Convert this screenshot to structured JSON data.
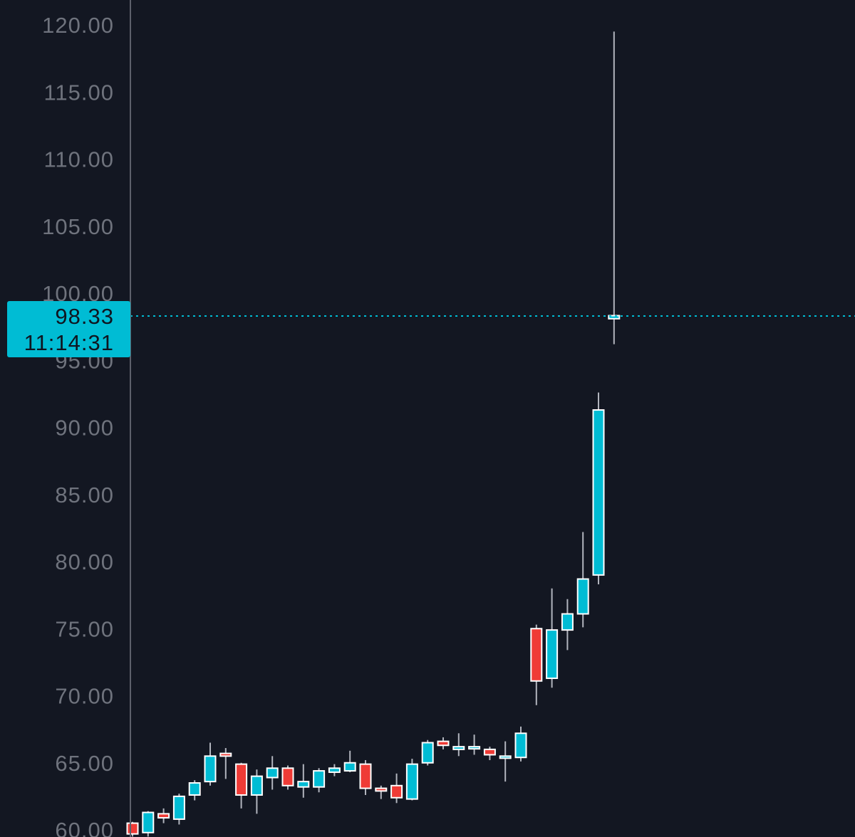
{
  "chart_data": {
    "type": "candlestick",
    "title": "",
    "xlabel": "",
    "ylabel": "",
    "ylim": [
      60,
      121.5
    ],
    "y_ticks": [
      "60.00",
      "65.00",
      "70.00",
      "75.00",
      "80.00",
      "85.00",
      "90.00",
      "95.00",
      "100.00",
      "105.00",
      "110.00",
      "115.00",
      "120.00"
    ],
    "grid": false,
    "legend": "none",
    "colors": {
      "background": "#131722",
      "up": "#00bcd4",
      "down": "#ef3b36",
      "outline": "#ffffff",
      "wick": "#b2b5be",
      "axis_line": "#5d606b",
      "tick_text": "#6f737d",
      "price_line": "#00bcd4"
    },
    "current_price": {
      "price": "98.33",
      "time": "11:14:31",
      "value": 98.33
    },
    "candles": [
      {
        "open": 60.5,
        "high": 60.6,
        "low": 59.5,
        "close": 59.7
      },
      {
        "open": 59.8,
        "high": 61.4,
        "low": 59.5,
        "close": 61.3
      },
      {
        "open": 61.2,
        "high": 61.6,
        "low": 60.5,
        "close": 60.9
      },
      {
        "open": 60.8,
        "high": 62.7,
        "low": 60.4,
        "close": 62.5
      },
      {
        "open": 62.6,
        "high": 63.7,
        "low": 62.2,
        "close": 63.5
      },
      {
        "open": 63.6,
        "high": 66.5,
        "low": 63.3,
        "close": 65.5
      },
      {
        "open": 65.7,
        "high": 66.1,
        "low": 63.8,
        "close": 65.5
      },
      {
        "open": 64.9,
        "high": 65.0,
        "low": 61.6,
        "close": 62.6
      },
      {
        "open": 62.6,
        "high": 64.5,
        "low": 61.2,
        "close": 64.0
      },
      {
        "open": 63.9,
        "high": 65.5,
        "low": 63.0,
        "close": 64.6
      },
      {
        "open": 64.6,
        "high": 64.8,
        "low": 63.0,
        "close": 63.3
      },
      {
        "open": 63.2,
        "high": 64.9,
        "low": 62.4,
        "close": 63.6
      },
      {
        "open": 63.2,
        "high": 64.6,
        "low": 62.8,
        "close": 64.4
      },
      {
        "open": 64.3,
        "high": 64.9,
        "low": 64.0,
        "close": 64.6
      },
      {
        "open": 64.4,
        "high": 65.9,
        "low": 64.3,
        "close": 65.0
      },
      {
        "open": 64.9,
        "high": 65.2,
        "low": 62.6,
        "close": 63.1
      },
      {
        "open": 63.1,
        "high": 63.3,
        "low": 62.3,
        "close": 62.9
      },
      {
        "open": 63.3,
        "high": 64.2,
        "low": 62.0,
        "close": 62.4
      },
      {
        "open": 62.3,
        "high": 65.3,
        "low": 62.2,
        "close": 64.9
      },
      {
        "open": 65.0,
        "high": 66.7,
        "low": 64.8,
        "close": 66.5
      },
      {
        "open": 66.6,
        "high": 66.9,
        "low": 66.0,
        "close": 66.3
      },
      {
        "open": 66.0,
        "high": 67.2,
        "low": 65.5,
        "close": 66.2
      },
      {
        "open": 66.2,
        "high": 67.1,
        "low": 65.6,
        "close": 66.2
      },
      {
        "open": 66.0,
        "high": 66.2,
        "low": 65.2,
        "close": 65.6
      },
      {
        "open": 65.5,
        "high": 66.6,
        "low": 63.6,
        "close": 65.5
      },
      {
        "open": 65.4,
        "high": 67.7,
        "low": 65.1,
        "close": 67.2
      },
      {
        "open": 75.0,
        "high": 75.3,
        "low": 69.3,
        "close": 71.1
      },
      {
        "open": 71.3,
        "high": 78.0,
        "low": 70.6,
        "close": 74.9
      },
      {
        "open": 74.9,
        "high": 77.2,
        "low": 73.4,
        "close": 76.1
      },
      {
        "open": 76.1,
        "high": 82.2,
        "low": 75.1,
        "close": 78.7
      },
      {
        "open": 79.0,
        "high": 92.6,
        "low": 78.3,
        "close": 91.3
      },
      {
        "open": 98.1,
        "high": 119.5,
        "low": 96.2,
        "close": 98.33
      }
    ]
  }
}
